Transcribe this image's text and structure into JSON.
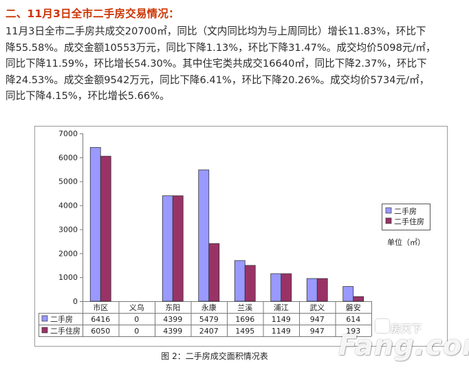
{
  "heading": "二、11月3日全市二手房交易情况：",
  "paragraph_lines": [
    "11月3日全市二手房共成交20700㎡，同比（文内同比均为与上周同比）增长11.83%，环比下",
    "降55.58%。成交金额10553万元，同比下降1.13%，环比下降31.47%。成交均价5098元/㎡，",
    "同比下降11.59%，环比增长54.30%。其中住宅类共成交16640㎡，同比下降2.37%，环比下",
    "降24.53%。成交金额9542万元，同比下降6.41%，环比下降20.26%。成交均价5734元/㎡，",
    "同比下降4.15%，环比增长5.66%。"
  ],
  "chart_data": {
    "type": "bar",
    "categories": [
      "市区",
      "义乌",
      "东阳",
      "永康",
      "兰溪",
      "浦江",
      "武义",
      "磐安"
    ],
    "series": [
      {
        "name": "二手房",
        "values": [
          6416,
          0,
          4399,
          5479,
          1696,
          1149,
          947,
          614
        ],
        "color": "#9999ff"
      },
      {
        "name": "二手住房",
        "values": [
          6050,
          0,
          4399,
          2407,
          1495,
          1149,
          947,
          193
        ],
        "color": "#993366"
      }
    ],
    "ylim": [
      0,
      7000
    ],
    "yticks": [
      0,
      1000,
      2000,
      3000,
      4000,
      5000,
      6000,
      7000
    ],
    "unit_label": "单位（㎡）",
    "caption": "图 2：二手房成交面积情况表",
    "legend_position": "right",
    "grid": false,
    "data_table": true
  },
  "watermark": {
    "brand": "Fang.com",
    "chinese": "房天下"
  }
}
